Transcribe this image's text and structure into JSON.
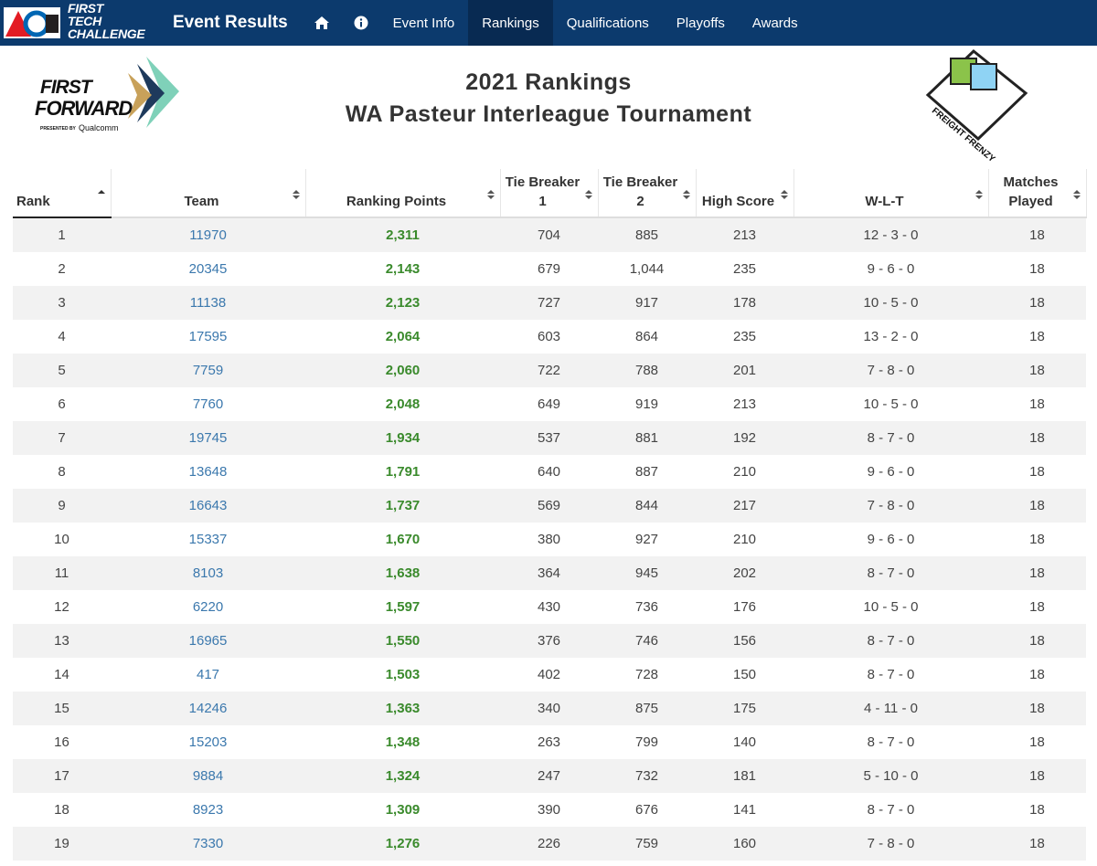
{
  "nav": {
    "logo": [
      "FIRST",
      "TECH",
      "CHALLENGE"
    ],
    "title": "Event Results",
    "items": [
      "Event Info",
      "Rankings",
      "Qualifications",
      "Playoffs",
      "Awards"
    ],
    "active": 1
  },
  "header": {
    "left_logo": {
      "line1": "FIRST",
      "line2": "FORWARD",
      "presented": "PRESENTED BY",
      "sponsor": "Qualcomm"
    },
    "title": "2021 Rankings",
    "subtitle": "WA Pasteur Interleague Tournament",
    "right_logo": "FREIGHT FRENZY"
  },
  "table": {
    "columns": [
      "Rank",
      "Team",
      "Ranking Points",
      "Tie Breaker 1",
      "Tie Breaker 2",
      "High Score",
      "W-L-T",
      "Matches Played"
    ],
    "rows": [
      [
        "1",
        "11970",
        "2,311",
        "704",
        "885",
        "213",
        "12 - 3 - 0",
        "18"
      ],
      [
        "2",
        "20345",
        "2,143",
        "679",
        "1,044",
        "235",
        "9 - 6 - 0",
        "18"
      ],
      [
        "3",
        "11138",
        "2,123",
        "727",
        "917",
        "178",
        "10 - 5 - 0",
        "18"
      ],
      [
        "4",
        "17595",
        "2,064",
        "603",
        "864",
        "235",
        "13 - 2 - 0",
        "18"
      ],
      [
        "5",
        "7759",
        "2,060",
        "722",
        "788",
        "201",
        "7 - 8 - 0",
        "18"
      ],
      [
        "6",
        "7760",
        "2,048",
        "649",
        "919",
        "213",
        "10 - 5 - 0",
        "18"
      ],
      [
        "7",
        "19745",
        "1,934",
        "537",
        "881",
        "192",
        "8 - 7 - 0",
        "18"
      ],
      [
        "8",
        "13648",
        "1,791",
        "640",
        "887",
        "210",
        "9 - 6 - 0",
        "18"
      ],
      [
        "9",
        "16643",
        "1,737",
        "569",
        "844",
        "217",
        "7 - 8 - 0",
        "18"
      ],
      [
        "10",
        "15337",
        "1,670",
        "380",
        "927",
        "210",
        "9 - 6 - 0",
        "18"
      ],
      [
        "11",
        "8103",
        "1,638",
        "364",
        "945",
        "202",
        "8 - 7 - 0",
        "18"
      ],
      [
        "12",
        "6220",
        "1,597",
        "430",
        "736",
        "176",
        "10 - 5 - 0",
        "18"
      ],
      [
        "13",
        "16965",
        "1,550",
        "376",
        "746",
        "156",
        "8 - 7 - 0",
        "18"
      ],
      [
        "14",
        "417",
        "1,503",
        "402",
        "728",
        "150",
        "8 - 7 - 0",
        "18"
      ],
      [
        "15",
        "14246",
        "1,363",
        "340",
        "875",
        "175",
        "4 - 11 - 0",
        "18"
      ],
      [
        "16",
        "15203",
        "1,348",
        "263",
        "799",
        "140",
        "8 - 7 - 0",
        "18"
      ],
      [
        "17",
        "9884",
        "1,324",
        "247",
        "732",
        "181",
        "5 - 10 - 0",
        "18"
      ],
      [
        "18",
        "8923",
        "1,309",
        "390",
        "676",
        "141",
        "8 - 7 - 0",
        "18"
      ],
      [
        "19",
        "7330",
        "1,276",
        "226",
        "759",
        "160",
        "7 - 8 - 0",
        "18"
      ]
    ]
  }
}
